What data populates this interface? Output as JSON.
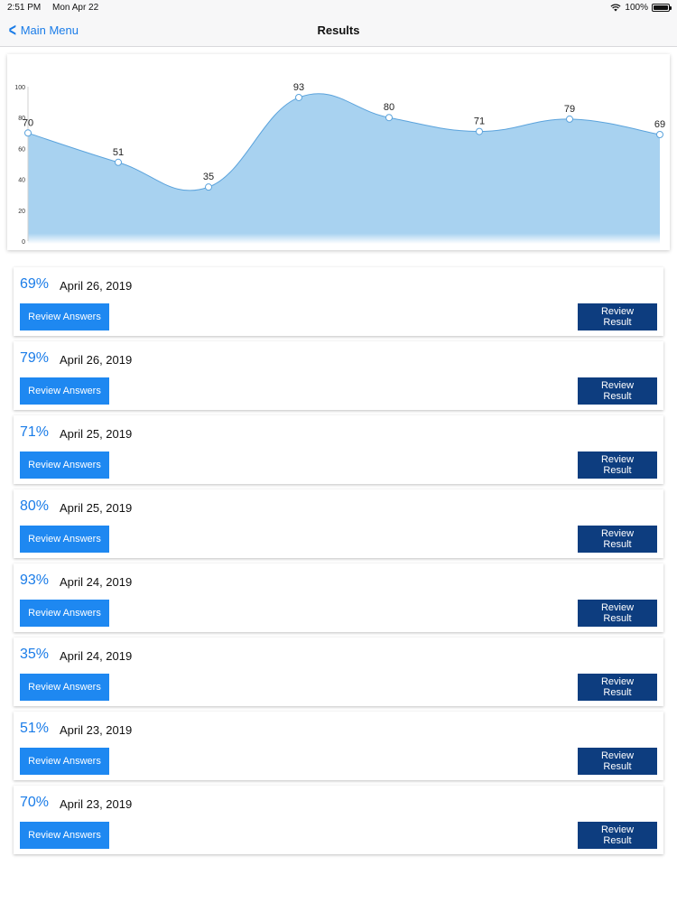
{
  "status_bar": {
    "time": "2:51 PM",
    "date": "Mon Apr 22",
    "battery": "100%",
    "battery_level": 1.0
  },
  "nav": {
    "back_label": "Main Menu",
    "title": "Results"
  },
  "chart_data": {
    "type": "area",
    "x": [
      1,
      2,
      3,
      4,
      5,
      6,
      7,
      8
    ],
    "values": [
      70,
      51,
      35,
      93,
      80,
      71,
      79,
      69
    ],
    "data_labels": [
      "70",
      "51",
      "35",
      "93",
      "80",
      "71",
      "79",
      "69"
    ],
    "ylim": [
      0,
      100
    ],
    "yticks": [
      "0",
      "20",
      "40",
      "60",
      "80",
      "100"
    ],
    "grid": false,
    "title": "",
    "xlabel": "",
    "ylabel": "",
    "fill_color": "#a8d2f0",
    "line_color": "#5ba3dc"
  },
  "colors": {
    "accent": "#1a7ce8",
    "review_answers_bg": "#1e88f1",
    "review_result_bg": "#0d3d7f"
  },
  "results": [
    {
      "score": "69%",
      "date": "April 26, 2019",
      "answers_label": "Review Answers",
      "result_label": "Review Result"
    },
    {
      "score": "79%",
      "date": "April 26, 2019",
      "answers_label": "Review Answers",
      "result_label": "Review Result"
    },
    {
      "score": "71%",
      "date": "April 25, 2019",
      "answers_label": "Review Answers",
      "result_label": "Review Result"
    },
    {
      "score": "80%",
      "date": "April 25, 2019",
      "answers_label": "Review Answers",
      "result_label": "Review Result"
    },
    {
      "score": "93%",
      "date": "April 24, 2019",
      "answers_label": "Review Answers",
      "result_label": "Review Result"
    },
    {
      "score": "35%",
      "date": "April 24, 2019",
      "answers_label": "Review Answers",
      "result_label": "Review Result"
    },
    {
      "score": "51%",
      "date": "April 23, 2019",
      "answers_label": "Review Answers",
      "result_label": "Review Result"
    },
    {
      "score": "70%",
      "date": "April 23, 2019",
      "answers_label": "Review Answers",
      "result_label": "Review Result"
    }
  ]
}
